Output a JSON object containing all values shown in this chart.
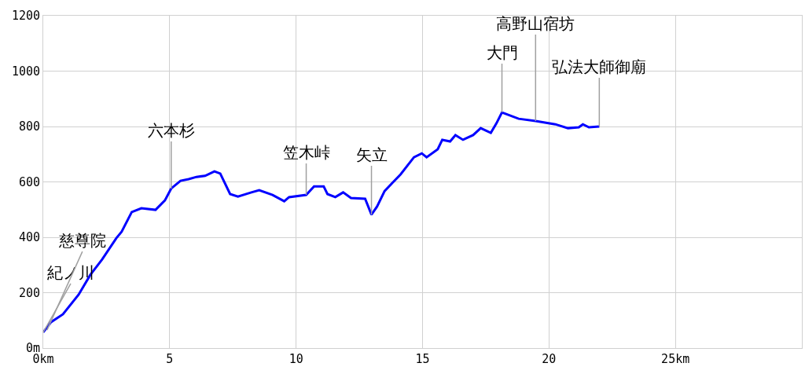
{
  "chart_data": {
    "type": "line",
    "grid": true,
    "marker": "none",
    "line_style": "solid",
    "xlim": [
      0,
      30
    ],
    "xticks": [
      {
        "value": 0,
        "label": "0km"
      },
      5,
      10,
      15,
      20,
      {
        "value": 25,
        "label": "25km"
      }
    ],
    "ylim": [
      0,
      1200
    ],
    "yticks": [
      {
        "value": 0,
        "label": "0m"
      },
      200,
      400,
      600,
      800,
      1000,
      1200
    ],
    "x": [
      0,
      0.31,
      0.78,
      1.4,
      1.86,
      2.33,
      2.89,
      3.1,
      3.5,
      3.88,
      4.44,
      4.81,
      5.06,
      5.43,
      5.75,
      6.06,
      6.4,
      6.77,
      7.0,
      7.39,
      7.7,
      8.23,
      8.54,
      9.07,
      9.53,
      9.72,
      10.4,
      10.71,
      11.09,
      11.24,
      11.55,
      11.86,
      12.17,
      12.73,
      12.98,
      13.2,
      13.5,
      13.8,
      14.13,
      14.66,
      14.97,
      15.16,
      15.6,
      15.78,
      16.09,
      16.3,
      16.6,
      17.0,
      17.3,
      17.7,
      17.92,
      18.14,
      18.8,
      19.47,
      20.25,
      20.75,
      21.18,
      21.34,
      21.58,
      21.99
    ],
    "series": [
      {
        "color": "#0000ff",
        "values": [
          57,
          94,
          122,
          193,
          264,
          320,
          397,
          420,
          491,
          505,
          499,
          533,
          576,
          604,
          610,
          618,
          622,
          638,
          630,
          556,
          547,
          562,
          570,
          553,
          530,
          545,
          553,
          584,
          584,
          556,
          545,
          562,
          542,
          539,
          482,
          511,
          567,
          596,
          627,
          689,
          703,
          689,
          718,
          752,
          746,
          769,
          752,
          769,
          794,
          777,
          811,
          851,
          828,
          820,
          808,
          794,
          797,
          808,
          797,
          800
        ]
      }
    ],
    "annotations": [
      {
        "text": "紀ノ川",
        "x": 0,
        "y": 57
      },
      {
        "text": "慈尊院",
        "x": 0.15,
        "y": 65
      },
      {
        "text": "六本杉",
        "x": 5.06,
        "y": 576
      },
      {
        "text": "笠木峠",
        "x": 10.4,
        "y": 553
      },
      {
        "text": "矢立",
        "x": 12.98,
        "y": 482
      },
      {
        "text": "大門",
        "x": 18.14,
        "y": 851
      },
      {
        "text": "高野山宿坊",
        "x": 19.47,
        "y": 820
      },
      {
        "text": "弘法大師御廟",
        "x": 21.99,
        "y": 800
      }
    ]
  }
}
